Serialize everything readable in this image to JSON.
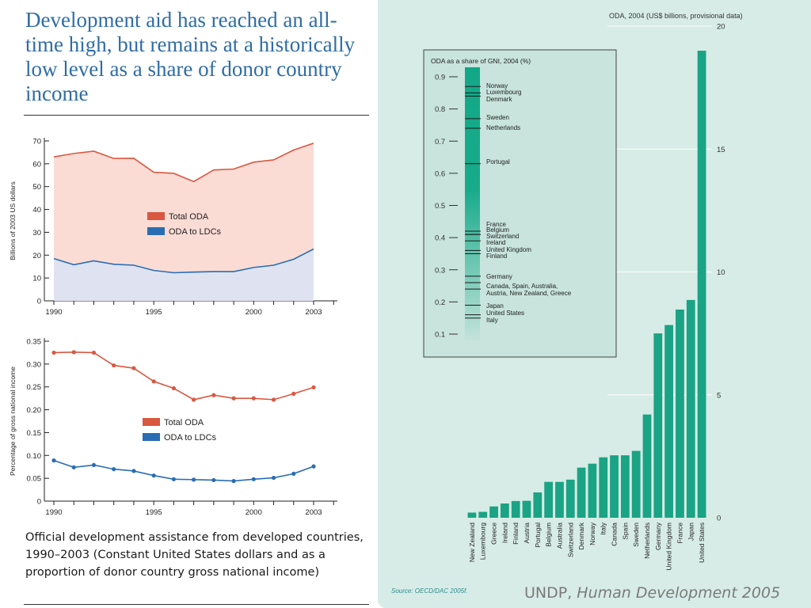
{
  "title": "Development aid has reached an all-time high, but remains at a historically low level as a share of donor country income",
  "caption": "Official development assistance from developed countries, 1990–2003 (Constant United States dollars and as a proportion of donor country gross national income)",
  "credit": {
    "prefix": "UNDP, ",
    "work": "Human Development 2005"
  },
  "source": "Source: OECD/DAC 2005f.",
  "colors": {
    "title": "#2f6da5",
    "total": "#d95840",
    "ldc": "#2a6db3",
    "total_fill": "#fbdcd5",
    "ldc_fill": "#dfe3f1",
    "bar": "#1aa384",
    "panel": "#d7ece6"
  },
  "chart_data": [
    {
      "type": "area",
      "ylabel": "Billions of 2003 US dollars",
      "ylim": [
        0,
        70
      ],
      "yticks": [
        "0",
        "10",
        "20",
        "30",
        "40",
        "50",
        "60",
        "70"
      ],
      "xticks": [
        "1990",
        "1995",
        "2000",
        "2003"
      ],
      "x": [
        1990,
        1991,
        1992,
        1993,
        1994,
        1995,
        1996,
        1997,
        1998,
        1999,
        2000,
        2001,
        2002,
        2003
      ],
      "series": [
        {
          "name": "Total ODA",
          "values": [
            63,
            64.5,
            65.5,
            62.3,
            62.4,
            56.3,
            55.8,
            52.2,
            57.3,
            57.7,
            60.7,
            61.7,
            66,
            69
          ]
        },
        {
          "name": "ODA to LDCs",
          "values": [
            18.5,
            15.8,
            17.5,
            16,
            15.6,
            13.3,
            12.3,
            12.6,
            12.8,
            12.8,
            14.6,
            15.6,
            18.2,
            22.7
          ]
        }
      ],
      "legend": "center"
    },
    {
      "type": "line",
      "ylabel": "Percentage of gross national income",
      "ylim": [
        0,
        0.35
      ],
      "yticks": [
        "0",
        "0.05",
        "0.10",
        "0.15",
        "0.20",
        "0.25",
        "0.30",
        "0.35"
      ],
      "xticks": [
        "1990",
        "1995",
        "2000",
        "2003"
      ],
      "x": [
        1990,
        1991,
        1992,
        1993,
        1994,
        1995,
        1996,
        1997,
        1998,
        1999,
        2000,
        2001,
        2002,
        2003
      ],
      "series": [
        {
          "name": "Total ODA",
          "values": [
            0.325,
            0.326,
            0.325,
            0.297,
            0.291,
            0.262,
            0.247,
            0.222,
            0.232,
            0.225,
            0.225,
            0.222,
            0.235,
            0.249
          ]
        },
        {
          "name": "ODA to LDCs",
          "values": [
            0.089,
            0.074,
            0.079,
            0.07,
            0.066,
            0.056,
            0.048,
            0.047,
            0.046,
            0.044,
            0.048,
            0.051,
            0.06,
            0.076
          ]
        }
      ],
      "legend": "center"
    },
    {
      "type": "bar",
      "title": "ODA, 2004 (US$ billions, provisional data)",
      "ylim": [
        0,
        20
      ],
      "yticks": [
        "0",
        "5",
        "10",
        "15",
        "20"
      ],
      "categories": [
        "New Zealand",
        "Luxembourg",
        "Greece",
        "Ireland",
        "Finland",
        "Austria",
        "Portugal",
        "Belgium",
        "Australia",
        "Switzerland",
        "Denmark",
        "Norway",
        "Italy",
        "Canada",
        "Spain",
        "Sweden",
        "Netherlands",
        "Germany",
        "United Kingdom",
        "France",
        "Japan",
        "United States"
      ],
      "values": [
        0.21,
        0.24,
        0.46,
        0.58,
        0.68,
        0.69,
        1.03,
        1.46,
        1.46,
        1.55,
        2.04,
        2.2,
        2.46,
        2.54,
        2.54,
        2.72,
        4.2,
        7.5,
        7.84,
        8.47,
        8.86,
        19
      ]
    },
    {
      "type": "scatter",
      "title": "ODA as a share of GNI, 2004 (%)",
      "ylim": [
        0.05,
        0.95
      ],
      "yticks": [
        "0.1",
        "0.2",
        "0.3",
        "0.4",
        "0.5",
        "0.6",
        "0.7",
        "0.8",
        "0.9"
      ],
      "countries": [
        {
          "name": "Norway",
          "value": 0.87
        },
        {
          "name": "Luxembourg",
          "value": 0.85
        },
        {
          "name": "Denmark",
          "value": 0.84
        },
        {
          "name": "Sweden",
          "value": 0.77
        },
        {
          "name": "Netherlands",
          "value": 0.74
        },
        {
          "name": "Portugal",
          "value": 0.63
        },
        {
          "name": "France",
          "value": 0.42
        },
        {
          "name": "Belgium",
          "value": 0.41
        },
        {
          "name": "Switzerland",
          "value": 0.41
        },
        {
          "name": "Ireland",
          "value": 0.39
        },
        {
          "name": "United Kingdom",
          "value": 0.36
        },
        {
          "name": "Finland",
          "value": 0.35
        },
        {
          "name": "Germany",
          "value": 0.28
        },
        {
          "name": "Canada, Spain, Australia,",
          "value": 0.26
        },
        {
          "name": "Austria, New Zealand, Greece",
          "value": 0.24
        },
        {
          "name": "Japan",
          "value": 0.19
        },
        {
          "name": "United States",
          "value": 0.16
        },
        {
          "name": "Italy",
          "value": 0.15
        }
      ]
    }
  ]
}
